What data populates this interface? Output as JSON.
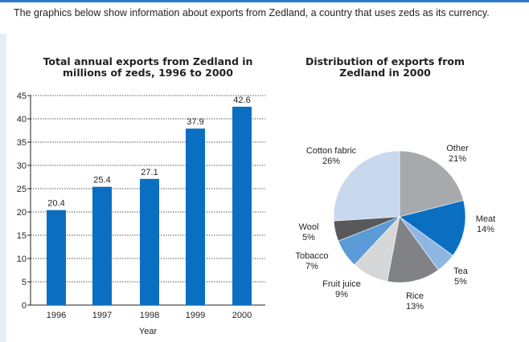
{
  "intro": "The graphics below show information about exports from Zedland, a country that uses zeds as its currency.",
  "colors": {
    "accent": "#2f7cc7",
    "bar": "#0b6fc1",
    "grid": "#231f20"
  },
  "chart_data": [
    {
      "type": "bar",
      "title": "Total annual exports from Zedland in millions of zeds, 1996 to 2000",
      "title_lines": [
        "Total annual exports from Zedland in",
        "millions of zeds, 1996 to 2000"
      ],
      "xlabel": "Year",
      "ylabel": "",
      "categories": [
        "1996",
        "1997",
        "1998",
        "1999",
        "2000"
      ],
      "values": [
        20.4,
        25.4,
        27.1,
        37.9,
        42.6
      ],
      "value_labels": [
        "20.4",
        "25.4",
        "27.1",
        "37.9",
        "42.6"
      ],
      "ylim": [
        0,
        45
      ],
      "yticks": [
        0,
        5,
        10,
        15,
        20,
        25,
        30,
        35,
        40,
        45
      ],
      "ytick_labels": [
        "0",
        "5",
        "10",
        "15",
        "20",
        "25",
        "30",
        "35",
        "40",
        "45"
      ],
      "grid": true
    },
    {
      "type": "pie",
      "title": "Distribution of exports from Zedland in 2000",
      "title_lines": [
        "Distribution of exports from",
        "Zedland in 2000"
      ],
      "slices": [
        {
          "name": "Other",
          "value": 21,
          "label": "21%",
          "color": "#a7a9ac"
        },
        {
          "name": "Meat",
          "value": 14,
          "label": "14%",
          "color": "#0b6fc1"
        },
        {
          "name": "Tea",
          "value": 5,
          "label": "5%",
          "color": "#8fb6e3"
        },
        {
          "name": "Rice",
          "value": 13,
          "label": "13%",
          "color": "#808285"
        },
        {
          "name": "Fruit juice",
          "value": 9,
          "label": "9%",
          "color": "#d6d7d9"
        },
        {
          "name": "Tobacco",
          "value": 7,
          "label": "7%",
          "color": "#5b9bd8"
        },
        {
          "name": "Wool",
          "value": 5,
          "label": "5%",
          "color": "#58595b"
        },
        {
          "name": "Cotton fabric",
          "value": 26,
          "label": "26%",
          "color": "#c7d8ef"
        }
      ]
    }
  ]
}
